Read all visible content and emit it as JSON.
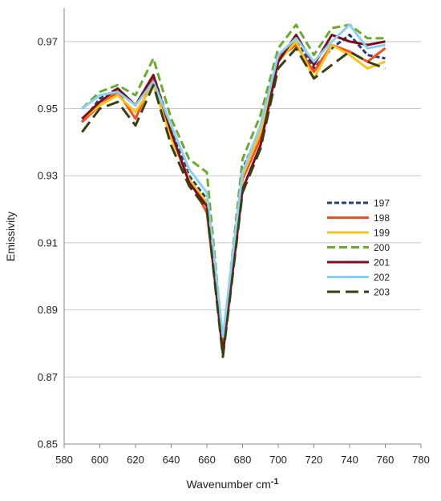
{
  "chart_data": {
    "type": "line",
    "xlabel": "Wavenumber cm",
    "xlabel_superscript": "-1",
    "ylabel": "Emissivity",
    "xlim": [
      580,
      780
    ],
    "ylim": [
      0.85,
      0.98
    ],
    "x_ticks": [
      580,
      600,
      620,
      640,
      660,
      680,
      700,
      720,
      740,
      760,
      780
    ],
    "x_tick_labels": [
      "580",
      "600",
      "620",
      "640",
      "660",
      "680",
      "700",
      "720",
      "740",
      "760",
      "780"
    ],
    "y_ticks": [
      0.85,
      0.87,
      0.89,
      0.91,
      0.93,
      0.95,
      0.97
    ],
    "y_tick_labels": [
      "0.85",
      "0.87",
      "0.89",
      "0.91",
      "0.93",
      "0.95",
      "0.97"
    ],
    "grid": "horizontal",
    "legend_position": "right-middle",
    "x": [
      590,
      600,
      610,
      620,
      630,
      640,
      650,
      660,
      669,
      680,
      690,
      700,
      710,
      720,
      730,
      740,
      750,
      760
    ],
    "series": [
      {
        "name": "197",
        "color": "#1f3f7f",
        "dash": "dotted",
        "values": [
          0.946,
          0.953,
          0.956,
          0.951,
          0.96,
          0.944,
          0.93,
          0.923,
          0.878,
          0.932,
          0.944,
          0.965,
          0.97,
          0.962,
          0.968,
          0.972,
          0.966,
          0.965
        ]
      },
      {
        "name": "198",
        "color": "#ff4a1a",
        "dash": "solid",
        "values": [
          0.946,
          0.951,
          0.955,
          0.947,
          0.959,
          0.942,
          0.929,
          0.919,
          0.879,
          0.929,
          0.941,
          0.965,
          0.969,
          0.961,
          0.969,
          0.967,
          0.964,
          0.968
        ]
      },
      {
        "name": "199",
        "color": "#f5c518",
        "dash": "solid",
        "values": [
          0.947,
          0.951,
          0.954,
          0.949,
          0.957,
          0.941,
          0.929,
          0.922,
          0.881,
          0.93,
          0.943,
          0.964,
          0.97,
          0.959,
          0.969,
          0.966,
          0.962,
          0.964
        ]
      },
      {
        "name": "200",
        "color": "#6aab2e",
        "dash": "dashed",
        "values": [
          0.95,
          0.955,
          0.957,
          0.954,
          0.965,
          0.947,
          0.935,
          0.931,
          0.88,
          0.935,
          0.948,
          0.968,
          0.975,
          0.966,
          0.974,
          0.975,
          0.971,
          0.971
        ]
      },
      {
        "name": "201",
        "color": "#7a0e1e",
        "dash": "solid",
        "values": [
          0.947,
          0.952,
          0.956,
          0.951,
          0.96,
          0.943,
          0.928,
          0.921,
          0.877,
          0.926,
          0.939,
          0.964,
          0.972,
          0.963,
          0.972,
          0.97,
          0.969,
          0.97
        ]
      },
      {
        "name": "202",
        "color": "#8ad0ef",
        "dash": "solid",
        "values": [
          0.95,
          0.954,
          0.955,
          0.951,
          0.958,
          0.945,
          0.932,
          0.925,
          0.882,
          0.931,
          0.945,
          0.966,
          0.971,
          0.964,
          0.97,
          0.975,
          0.968,
          0.969
        ]
      },
      {
        "name": "203",
        "color": "#3a3f12",
        "dash": "longdash",
        "values": [
          0.943,
          0.95,
          0.952,
          0.945,
          0.957,
          0.939,
          0.927,
          0.92,
          0.876,
          0.925,
          0.938,
          0.962,
          0.968,
          0.959,
          0.963,
          0.967,
          0.964,
          0.962
        ]
      }
    ]
  }
}
